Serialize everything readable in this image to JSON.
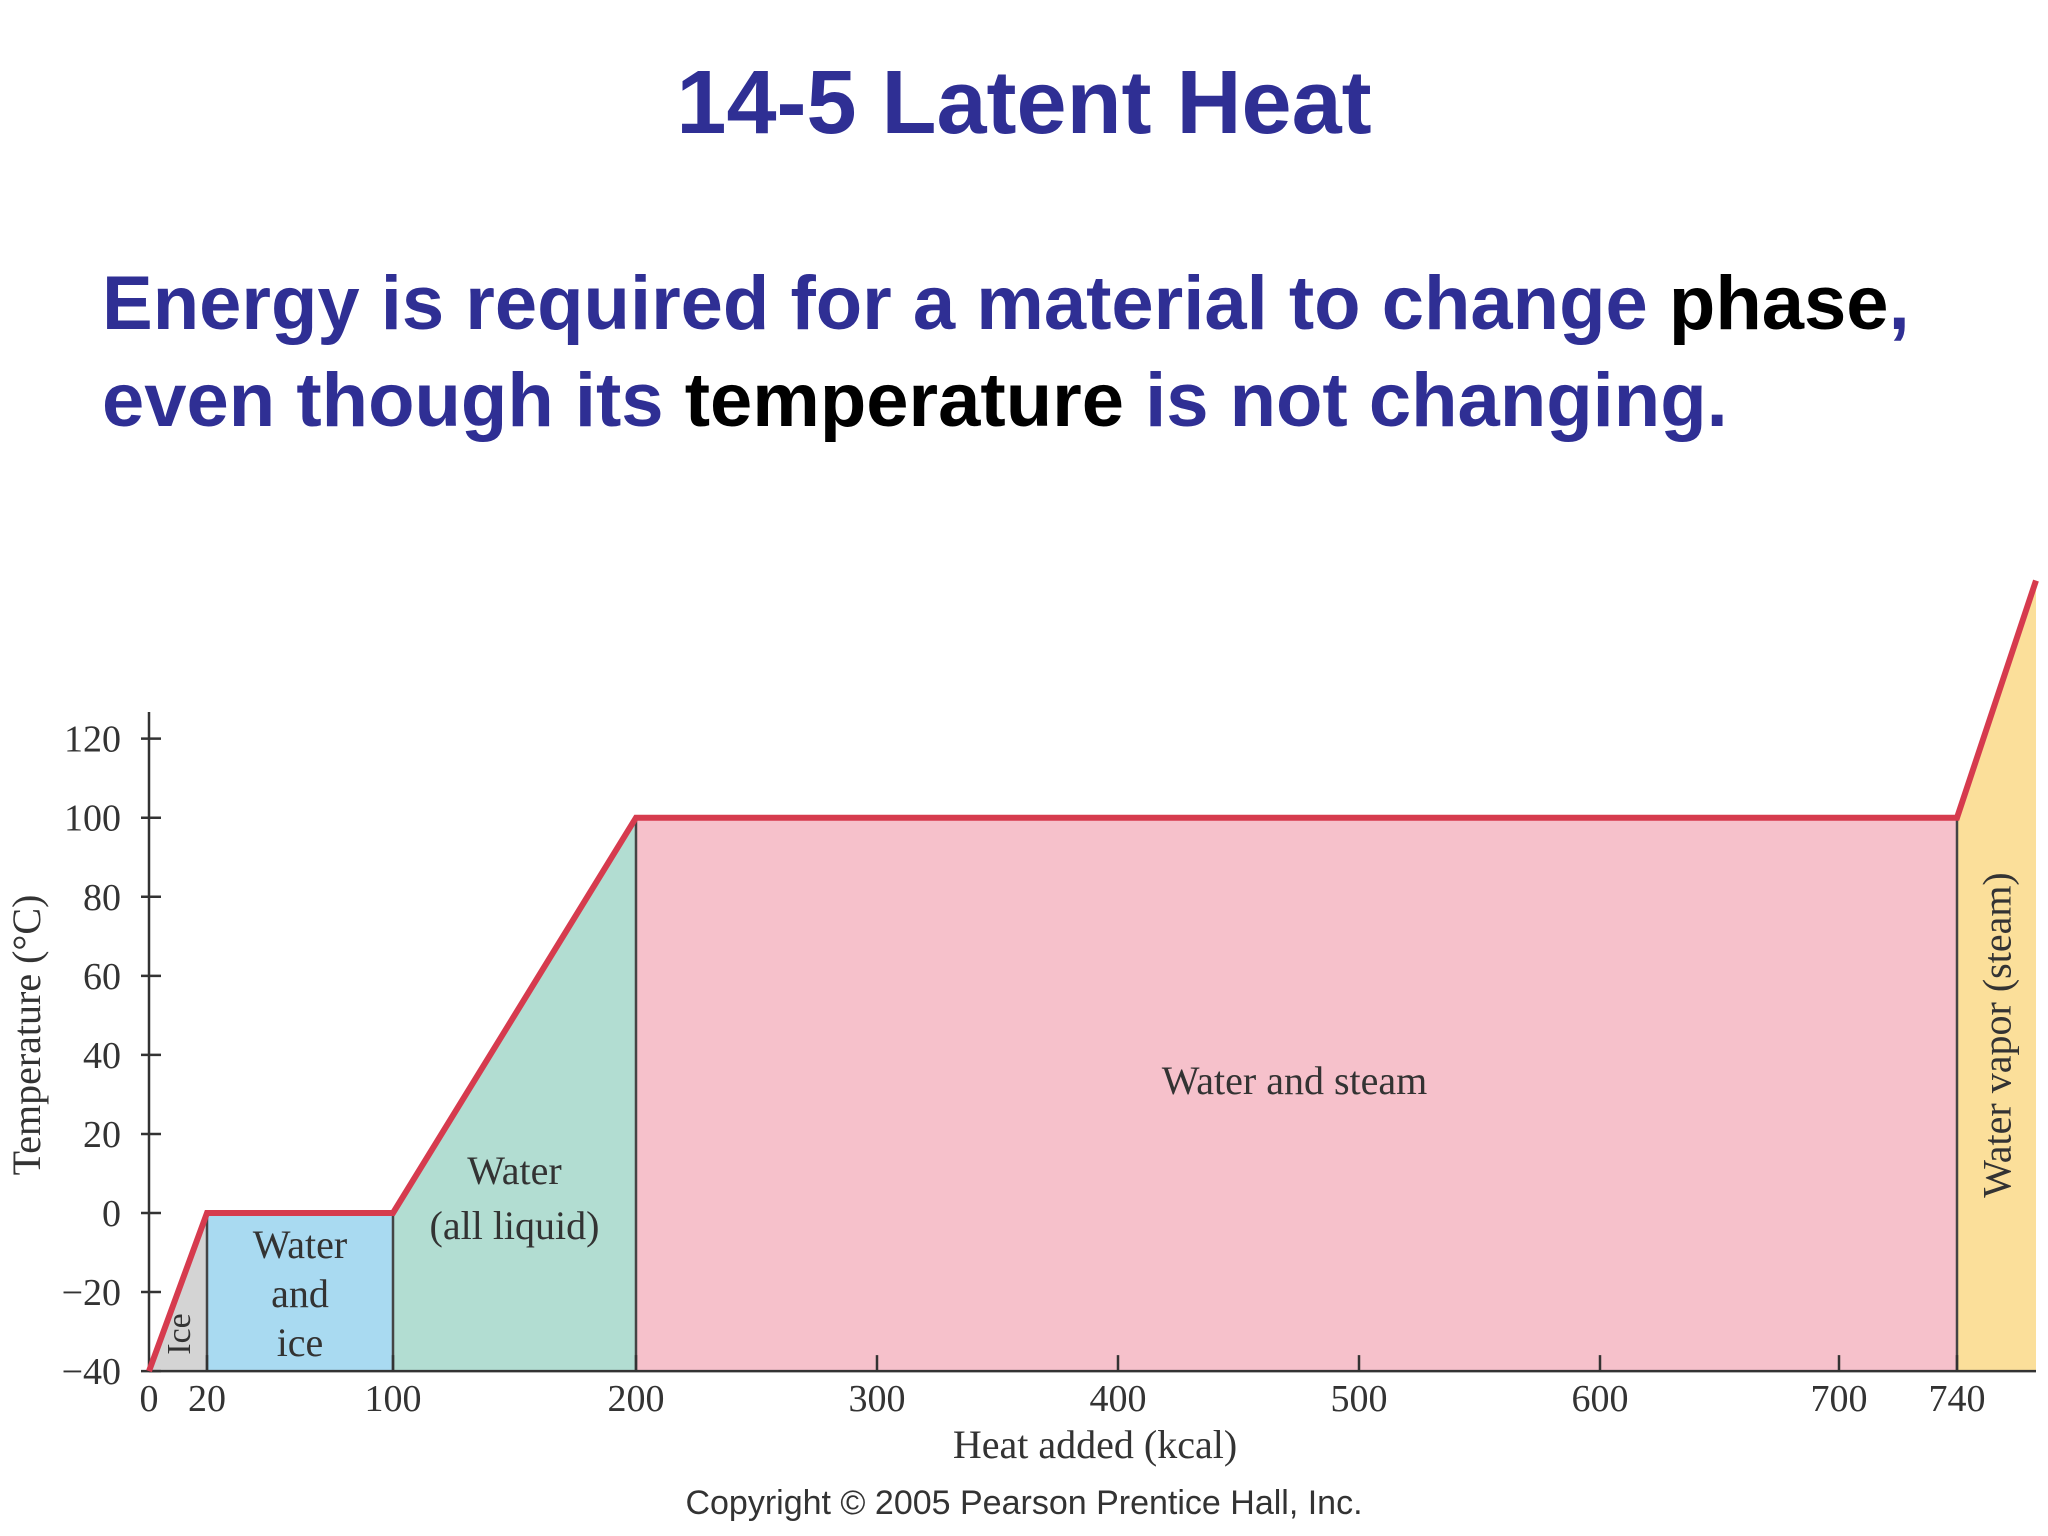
{
  "slide": {
    "title": "14-5 Latent Heat",
    "body_segments": [
      {
        "text": "Energy is required for a material to change ",
        "emphasis": false
      },
      {
        "text": "phase",
        "emphasis": true
      },
      {
        "text": ", even though its ",
        "emphasis": false
      },
      {
        "text": "temperature",
        "emphasis": true
      },
      {
        "text": " is not changing.",
        "emphasis": false
      }
    ],
    "copyright": "Copyright © 2005 Pearson Prentice Hall, Inc."
  },
  "colors": {
    "title": "#2f2f94",
    "emphasis_text": "#000000",
    "curve": "#d63b4e",
    "ice": "#d4d4d4",
    "water_and_ice": "#a9daf1",
    "water_liquid": "#b2ddd2",
    "water_and_steam": "#f6c1cb",
    "water_vapor": "#fbdf9a",
    "axis": "#333333"
  },
  "chart_data": {
    "type": "line",
    "title": "",
    "xlabel": "Heat added (kcal)",
    "ylabel": "Temperature (°C)",
    "xlim": [
      0,
      780
    ],
    "ylim": [
      -40,
      125
    ],
    "x_ticks": [
      0,
      20,
      100,
      200,
      300,
      400,
      500,
      600,
      700,
      740
    ],
    "x_tick_labels": [
      "0",
      "20",
      "100",
      "200",
      "300",
      "400",
      "500",
      "600",
      "700",
      "740"
    ],
    "y_ticks": [
      -40,
      -20,
      0,
      20,
      40,
      60,
      80,
      100,
      120
    ],
    "y_tick_labels": [
      "−40",
      "−20",
      "0",
      "20",
      "40",
      "60",
      "80",
      "100",
      "120"
    ],
    "series": [
      {
        "x": [
          0,
          20,
          100,
          200,
          740,
          780
        ],
        "y": [
          -40,
          0,
          0,
          100,
          100,
          160
        ]
      }
    ],
    "regions": [
      {
        "label_lines": [
          "Ice"
        ],
        "x_start": 0,
        "x_end": 20,
        "color_key": "ice",
        "vertical": true
      },
      {
        "label_lines": [
          "Water",
          "and",
          "ice"
        ],
        "x_start": 20,
        "x_end": 100,
        "color_key": "water_and_ice",
        "vertical": false
      },
      {
        "label_lines": [
          "Water",
          "(all liquid)"
        ],
        "x_start": 100,
        "x_end": 200,
        "color_key": "water_liquid",
        "vertical": false
      },
      {
        "label_lines": [
          "Water and steam"
        ],
        "x_start": 200,
        "x_end": 740,
        "color_key": "water_and_steam",
        "vertical": false
      },
      {
        "label_lines": [
          "Water vapor (steam)"
        ],
        "x_start": 740,
        "x_end": 780,
        "color_key": "water_vapor",
        "vertical": true
      }
    ],
    "grid": false,
    "legend": "none"
  }
}
